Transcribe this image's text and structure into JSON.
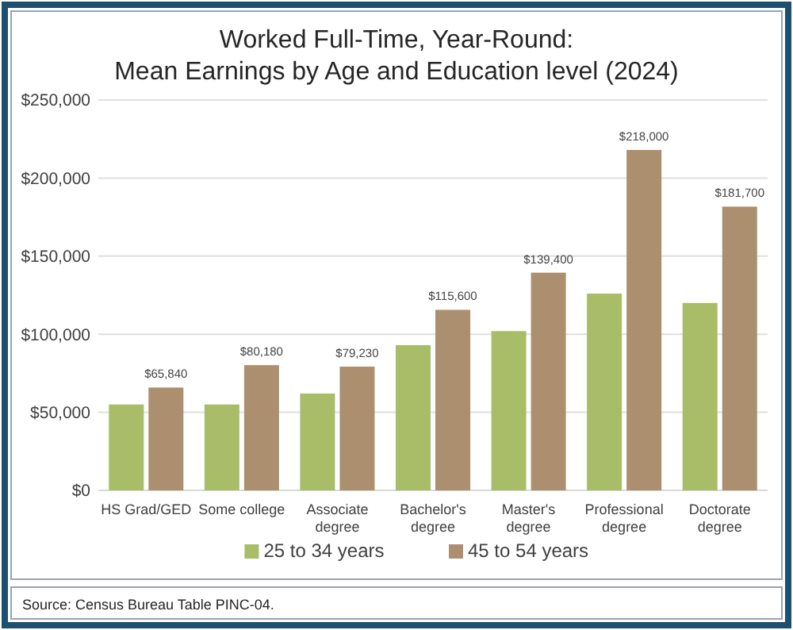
{
  "chart_data": {
    "type": "bar",
    "title": "Worked Full-Time, Year-Round:\nMean Earnings by Age and Education level (2024)",
    "categories": [
      "HS Grad/GED",
      "Some college",
      "Associate degree",
      "Bachelor's degree",
      "Master's degree",
      "Professional degree",
      "Doctorate degree"
    ],
    "series": [
      {
        "name": "25 to 34 years",
        "color": "#a9bd68",
        "values": [
          55000,
          55000,
          62000,
          93000,
          102000,
          126000,
          120000
        ]
      },
      {
        "name": "45 to 54 years",
        "color": "#ab8f6e",
        "values": [
          65840,
          80180,
          79230,
          115600,
          139400,
          218000,
          181700
        ],
        "value_labels": [
          "$65,840",
          "$80,180",
          "$79,230",
          "$115,600",
          "$139,400",
          "$218,000",
          "$181,700"
        ]
      }
    ],
    "ylim": [
      0,
      250000
    ],
    "yticks": [
      {
        "value": 0,
        "label": "$0"
      },
      {
        "value": 50000,
        "label": "$50,000"
      },
      {
        "value": 100000,
        "label": "$100,000"
      },
      {
        "value": 150000,
        "label": "$150,000"
      },
      {
        "value": 200000,
        "label": "$200,000"
      },
      {
        "value": 250000,
        "label": "$250,000"
      }
    ],
    "grid": "y",
    "legend": "bottom",
    "annotations": [
      "Source: Census Bureau Table PINC-04."
    ]
  }
}
